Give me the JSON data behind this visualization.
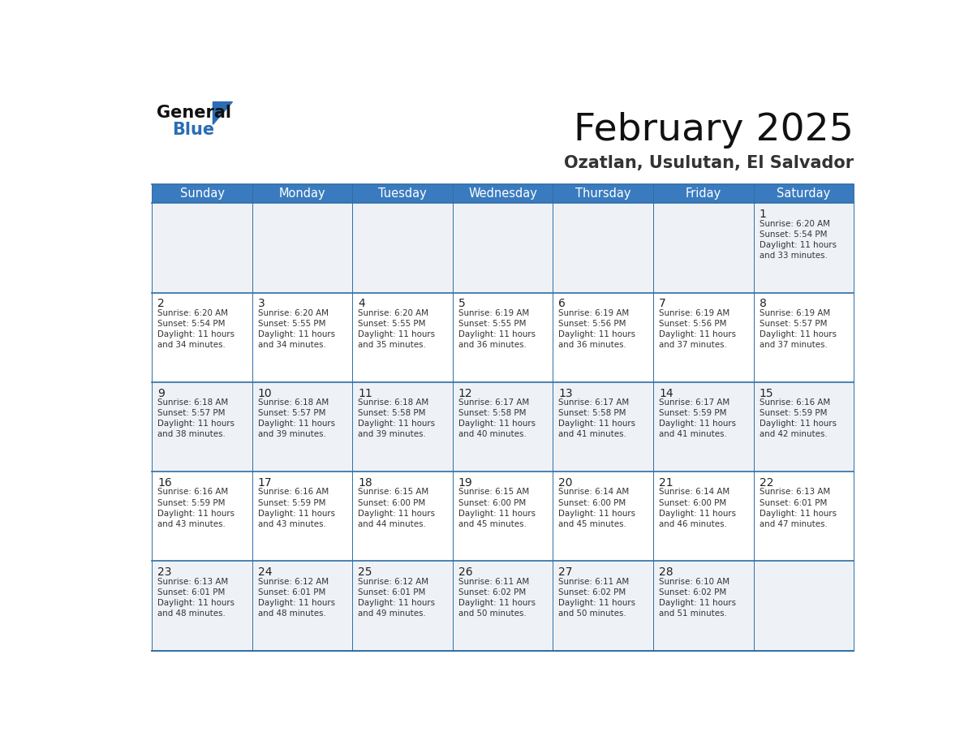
{
  "title": "February 2025",
  "subtitle": "Ozatlan, Usulutan, El Salvador",
  "days_of_week": [
    "Sunday",
    "Monday",
    "Tuesday",
    "Wednesday",
    "Thursday",
    "Friday",
    "Saturday"
  ],
  "header_bg": "#3a7bbf",
  "header_text": "#ffffff",
  "cell_bg_light": "#eef2f7",
  "cell_bg_white": "#ffffff",
  "border_color": "#2e6da4",
  "day_num_color": "#222222",
  "cell_text_color": "#333333",
  "title_color": "#111111",
  "subtitle_color": "#333333",
  "logo_general_color": "#111111",
  "logo_blue_color": "#2a6db5",
  "calendar": [
    [
      null,
      null,
      null,
      null,
      null,
      null,
      {
        "day": 1,
        "sunrise": "6:20 AM",
        "sunset": "5:54 PM",
        "daylight_line1": "Daylight: 11 hours",
        "daylight_line2": "and 33 minutes."
      }
    ],
    [
      {
        "day": 2,
        "sunrise": "6:20 AM",
        "sunset": "5:54 PM",
        "daylight_line1": "Daylight: 11 hours",
        "daylight_line2": "and 34 minutes."
      },
      {
        "day": 3,
        "sunrise": "6:20 AM",
        "sunset": "5:55 PM",
        "daylight_line1": "Daylight: 11 hours",
        "daylight_line2": "and 34 minutes."
      },
      {
        "day": 4,
        "sunrise": "6:20 AM",
        "sunset": "5:55 PM",
        "daylight_line1": "Daylight: 11 hours",
        "daylight_line2": "and 35 minutes."
      },
      {
        "day": 5,
        "sunrise": "6:19 AM",
        "sunset": "5:55 PM",
        "daylight_line1": "Daylight: 11 hours",
        "daylight_line2": "and 36 minutes."
      },
      {
        "day": 6,
        "sunrise": "6:19 AM",
        "sunset": "5:56 PM",
        "daylight_line1": "Daylight: 11 hours",
        "daylight_line2": "and 36 minutes."
      },
      {
        "day": 7,
        "sunrise": "6:19 AM",
        "sunset": "5:56 PM",
        "daylight_line1": "Daylight: 11 hours",
        "daylight_line2": "and 37 minutes."
      },
      {
        "day": 8,
        "sunrise": "6:19 AM",
        "sunset": "5:57 PM",
        "daylight_line1": "Daylight: 11 hours",
        "daylight_line2": "and 37 minutes."
      }
    ],
    [
      {
        "day": 9,
        "sunrise": "6:18 AM",
        "sunset": "5:57 PM",
        "daylight_line1": "Daylight: 11 hours",
        "daylight_line2": "and 38 minutes."
      },
      {
        "day": 10,
        "sunrise": "6:18 AM",
        "sunset": "5:57 PM",
        "daylight_line1": "Daylight: 11 hours",
        "daylight_line2": "and 39 minutes."
      },
      {
        "day": 11,
        "sunrise": "6:18 AM",
        "sunset": "5:58 PM",
        "daylight_line1": "Daylight: 11 hours",
        "daylight_line2": "and 39 minutes."
      },
      {
        "day": 12,
        "sunrise": "6:17 AM",
        "sunset": "5:58 PM",
        "daylight_line1": "Daylight: 11 hours",
        "daylight_line2": "and 40 minutes."
      },
      {
        "day": 13,
        "sunrise": "6:17 AM",
        "sunset": "5:58 PM",
        "daylight_line1": "Daylight: 11 hours",
        "daylight_line2": "and 41 minutes."
      },
      {
        "day": 14,
        "sunrise": "6:17 AM",
        "sunset": "5:59 PM",
        "daylight_line1": "Daylight: 11 hours",
        "daylight_line2": "and 41 minutes."
      },
      {
        "day": 15,
        "sunrise": "6:16 AM",
        "sunset": "5:59 PM",
        "daylight_line1": "Daylight: 11 hours",
        "daylight_line2": "and 42 minutes."
      }
    ],
    [
      {
        "day": 16,
        "sunrise": "6:16 AM",
        "sunset": "5:59 PM",
        "daylight_line1": "Daylight: 11 hours",
        "daylight_line2": "and 43 minutes."
      },
      {
        "day": 17,
        "sunrise": "6:16 AM",
        "sunset": "5:59 PM",
        "daylight_line1": "Daylight: 11 hours",
        "daylight_line2": "and 43 minutes."
      },
      {
        "day": 18,
        "sunrise": "6:15 AM",
        "sunset": "6:00 PM",
        "daylight_line1": "Daylight: 11 hours",
        "daylight_line2": "and 44 minutes."
      },
      {
        "day": 19,
        "sunrise": "6:15 AM",
        "sunset": "6:00 PM",
        "daylight_line1": "Daylight: 11 hours",
        "daylight_line2": "and 45 minutes."
      },
      {
        "day": 20,
        "sunrise": "6:14 AM",
        "sunset": "6:00 PM",
        "daylight_line1": "Daylight: 11 hours",
        "daylight_line2": "and 45 minutes."
      },
      {
        "day": 21,
        "sunrise": "6:14 AM",
        "sunset": "6:00 PM",
        "daylight_line1": "Daylight: 11 hours",
        "daylight_line2": "and 46 minutes."
      },
      {
        "day": 22,
        "sunrise": "6:13 AM",
        "sunset": "6:01 PM",
        "daylight_line1": "Daylight: 11 hours",
        "daylight_line2": "and 47 minutes."
      }
    ],
    [
      {
        "day": 23,
        "sunrise": "6:13 AM",
        "sunset": "6:01 PM",
        "daylight_line1": "Daylight: 11 hours",
        "daylight_line2": "and 48 minutes."
      },
      {
        "day": 24,
        "sunrise": "6:12 AM",
        "sunset": "6:01 PM",
        "daylight_line1": "Daylight: 11 hours",
        "daylight_line2": "and 48 minutes."
      },
      {
        "day": 25,
        "sunrise": "6:12 AM",
        "sunset": "6:01 PM",
        "daylight_line1": "Daylight: 11 hours",
        "daylight_line2": "and 49 minutes."
      },
      {
        "day": 26,
        "sunrise": "6:11 AM",
        "sunset": "6:02 PM",
        "daylight_line1": "Daylight: 11 hours",
        "daylight_line2": "and 50 minutes."
      },
      {
        "day": 27,
        "sunrise": "6:11 AM",
        "sunset": "6:02 PM",
        "daylight_line1": "Daylight: 11 hours",
        "daylight_line2": "and 50 minutes."
      },
      {
        "day": 28,
        "sunrise": "6:10 AM",
        "sunset": "6:02 PM",
        "daylight_line1": "Daylight: 11 hours",
        "daylight_line2": "and 51 minutes."
      },
      null
    ]
  ]
}
